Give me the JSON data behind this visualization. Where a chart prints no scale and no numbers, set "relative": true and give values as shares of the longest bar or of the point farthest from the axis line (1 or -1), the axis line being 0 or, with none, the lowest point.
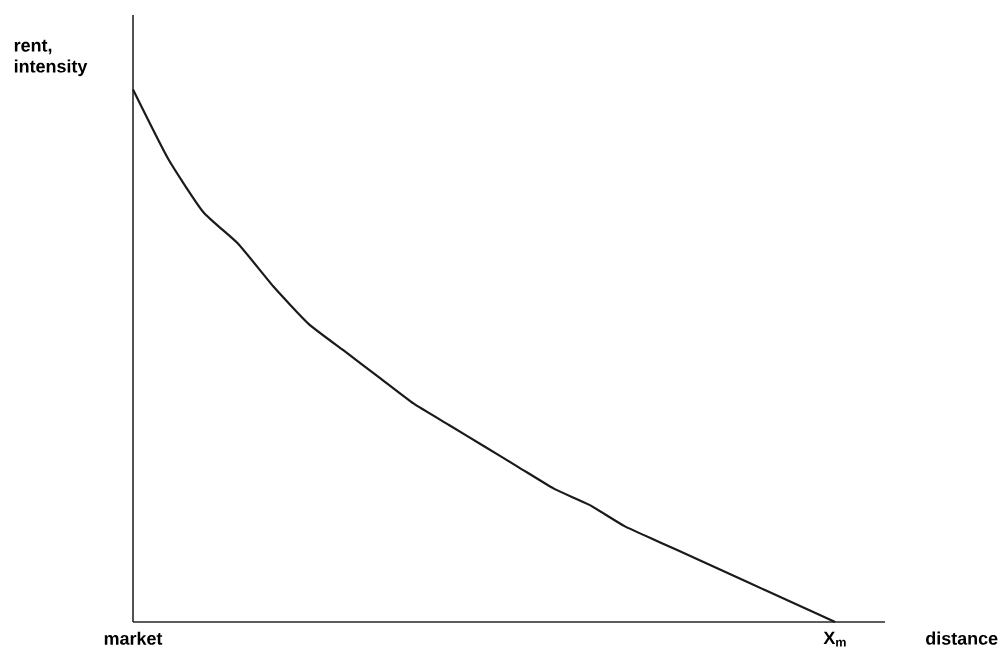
{
  "chart_data": {
    "type": "line",
    "relative": true,
    "ylabel": "rent, intensity",
    "xlabel": "distance",
    "categories": [
      "market",
      null,
      null,
      null,
      null,
      null,
      null,
      null,
      null,
      null,
      null,
      null,
      null,
      null,
      null,
      null,
      null,
      null,
      null,
      null,
      "X$_{m}$"
    ],
    "values": [
      1,
      0.87,
      0.77,
      0.71,
      0.63,
      0.56,
      0.51,
      0.46,
      0.41,
      0.37,
      0.33,
      0.29,
      0.25,
      0.22,
      0.18,
      0.15,
      0.12,
      0.09,
      0.06,
      0.03,
      0
    ],
    "color": "#1a1a1a",
    "marker": "none",
    "line_style": "solid"
  }
}
